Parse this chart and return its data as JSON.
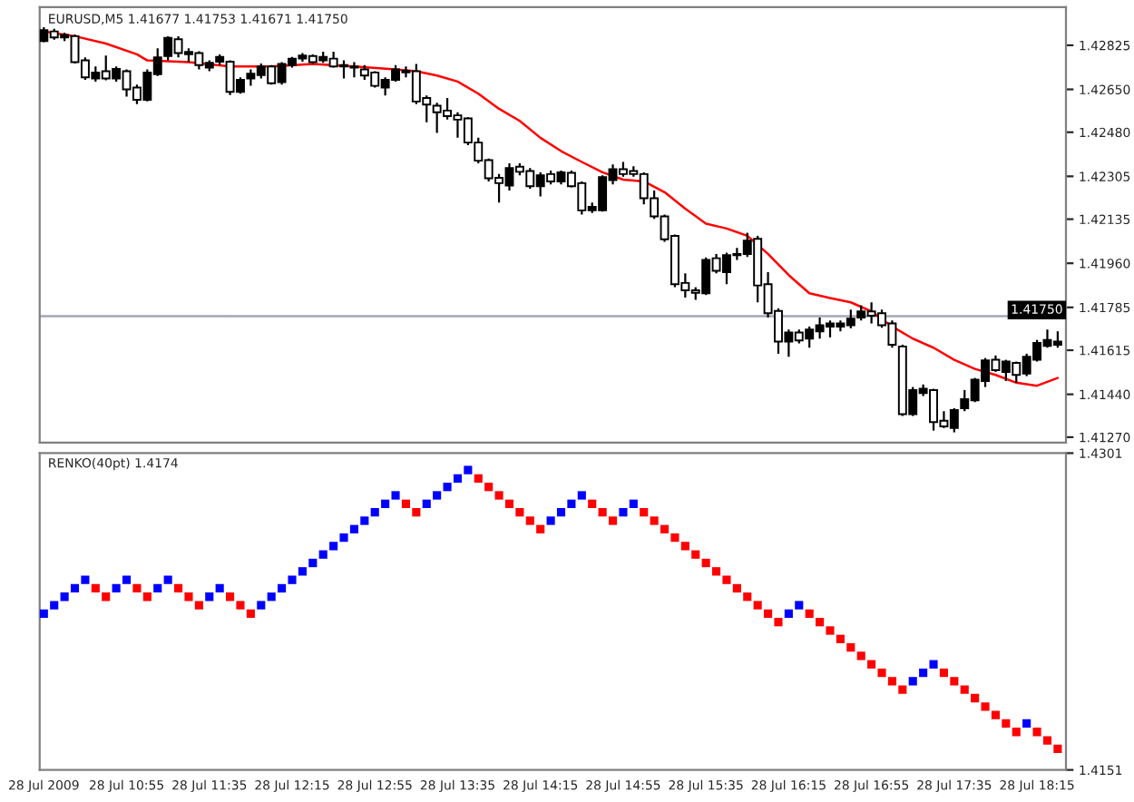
{
  "chart_data": [
    {
      "type": "candlestick",
      "title": "EURUSD,M5 1.41677 1.41753 1.41671 1.41750",
      "x": [
        "2009-07-28T10:15",
        "2009-07-28T10:20",
        "2009-07-28T10:25",
        "2009-07-28T10:30",
        "2009-07-28T10:35",
        "2009-07-28T10:40",
        "2009-07-28T10:45",
        "2009-07-28T10:50",
        "2009-07-28T10:55",
        "2009-07-28T11:00",
        "2009-07-28T11:05",
        "2009-07-28T11:10",
        "2009-07-28T11:15",
        "2009-07-28T11:20",
        "2009-07-28T11:25",
        "2009-07-28T11:30",
        "2009-07-28T11:35",
        "2009-07-28T11:40",
        "2009-07-28T11:45",
        "2009-07-28T11:50",
        "2009-07-28T11:55",
        "2009-07-28T12:00",
        "2009-07-28T12:05",
        "2009-07-28T12:10",
        "2009-07-28T12:15",
        "2009-07-28T12:20",
        "2009-07-28T12:25",
        "2009-07-28T12:30",
        "2009-07-28T12:35",
        "2009-07-28T12:40",
        "2009-07-28T12:45",
        "2009-07-28T12:50",
        "2009-07-28T12:55",
        "2009-07-28T13:00",
        "2009-07-28T13:05",
        "2009-07-28T13:10",
        "2009-07-28T13:15",
        "2009-07-28T13:20",
        "2009-07-28T13:25",
        "2009-07-28T13:30",
        "2009-07-28T13:35",
        "2009-07-28T13:40",
        "2009-07-28T13:45",
        "2009-07-28T13:50",
        "2009-07-28T13:55",
        "2009-07-28T14:00",
        "2009-07-28T14:05",
        "2009-07-28T14:10",
        "2009-07-28T14:15",
        "2009-07-28T14:20",
        "2009-07-28T14:25",
        "2009-07-28T14:30",
        "2009-07-28T14:35",
        "2009-07-28T14:40",
        "2009-07-28T14:45",
        "2009-07-28T14:50",
        "2009-07-28T14:55",
        "2009-07-28T15:00",
        "2009-07-28T15:05",
        "2009-07-28T15:10",
        "2009-07-28T15:15",
        "2009-07-28T15:20",
        "2009-07-28T15:25",
        "2009-07-28T15:30",
        "2009-07-28T15:35",
        "2009-07-28T15:40",
        "2009-07-28T15:45",
        "2009-07-28T15:50",
        "2009-07-28T15:55",
        "2009-07-28T16:00",
        "2009-07-28T16:05",
        "2009-07-28T16:10",
        "2009-07-28T16:15",
        "2009-07-28T16:20",
        "2009-07-28T16:25",
        "2009-07-28T16:30",
        "2009-07-28T16:35",
        "2009-07-28T16:40",
        "2009-07-28T16:45",
        "2009-07-28T16:50",
        "2009-07-28T16:55",
        "2009-07-28T17:00",
        "2009-07-28T17:05",
        "2009-07-28T17:10",
        "2009-07-28T17:15",
        "2009-07-28T17:20",
        "2009-07-28T17:25",
        "2009-07-28T17:30",
        "2009-07-28T17:35",
        "2009-07-28T17:40",
        "2009-07-28T17:45",
        "2009-07-28T17:50",
        "2009-07-28T17:55",
        "2009-07-28T18:00",
        "2009-07-28T18:05",
        "2009-07-28T18:10",
        "2009-07-28T18:15",
        "2009-07-28T18:20",
        "2009-07-28T18:25"
      ],
      "ohlc": [
        [
          1.42842,
          1.42897,
          1.42837,
          1.42885
        ],
        [
          1.4288,
          1.4289,
          1.42847,
          1.42856
        ],
        [
          1.42856,
          1.42875,
          1.42842,
          1.42866
        ],
        [
          1.42861,
          1.42868,
          1.42753,
          1.42758
        ],
        [
          1.42765,
          1.42777,
          1.42688,
          1.42698
        ],
        [
          1.42693,
          1.42741,
          1.42681,
          1.42717
        ],
        [
          1.42722,
          1.42784,
          1.42686,
          1.42693
        ],
        [
          1.42693,
          1.42741,
          1.42681,
          1.42731
        ],
        [
          1.42722,
          1.42729,
          1.42621,
          1.4265
        ],
        [
          1.42657,
          1.42669,
          1.42592,
          1.42609
        ],
        [
          1.42609,
          1.42729,
          1.42602,
          1.42717
        ],
        [
          1.4271,
          1.42813,
          1.42703,
          1.42777
        ],
        [
          1.42782,
          1.42861,
          1.42765,
          1.42854
        ],
        [
          1.42849,
          1.42861,
          1.42777,
          1.42794
        ],
        [
          1.42789,
          1.42813,
          1.42758,
          1.42799
        ],
        [
          1.42794,
          1.42801,
          1.42729,
          1.42746
        ],
        [
          1.42736,
          1.42765,
          1.42722,
          1.42755
        ],
        [
          1.4276,
          1.42789,
          1.42746,
          1.42779
        ],
        [
          1.4276,
          1.42765,
          1.42628,
          1.4264
        ],
        [
          1.4264,
          1.42698,
          1.42633,
          1.42688
        ],
        [
          1.42693,
          1.42729,
          1.42664,
          1.42712
        ],
        [
          1.42707,
          1.42753,
          1.42693,
          1.42741
        ],
        [
          1.42741,
          1.42746,
          1.42669,
          1.42674
        ],
        [
          1.42679,
          1.42758,
          1.42669,
          1.42751
        ],
        [
          1.42746,
          1.42779,
          1.42736,
          1.42772
        ],
        [
          1.42772,
          1.42794,
          1.4276,
          1.42784
        ],
        [
          1.42782,
          1.42789,
          1.42751,
          1.42758
        ],
        [
          1.42765,
          1.42799,
          1.42755,
          1.42779
        ],
        [
          1.42772,
          1.42799,
          1.42736,
          1.42741
        ],
        [
          1.42746,
          1.42765,
          1.42693,
          1.42741
        ],
        [
          1.42741,
          1.42758,
          1.42698,
          1.42736
        ],
        [
          1.42729,
          1.42746,
          1.42688,
          1.42705
        ],
        [
          1.42717,
          1.42722,
          1.42657,
          1.42664
        ],
        [
          1.42657,
          1.42698,
          1.42626,
          1.42688
        ],
        [
          1.42688,
          1.42746,
          1.42681,
          1.42729
        ],
        [
          1.42724,
          1.42741,
          1.42698,
          1.42717
        ],
        [
          1.42722,
          1.42751,
          1.42592,
          1.42602
        ],
        [
          1.42616,
          1.42626,
          1.4252,
          1.4259
        ],
        [
          1.42585,
          1.42597,
          1.42477,
          1.42559
        ],
        [
          1.42566,
          1.42616,
          1.4253,
          1.42544
        ],
        [
          1.42547,
          1.42559,
          1.42458,
          1.4253
        ],
        [
          1.42535,
          1.42539,
          1.42429,
          1.42439
        ],
        [
          1.42439,
          1.42458,
          1.42357,
          1.42367
        ],
        [
          1.42369,
          1.42376,
          1.42285,
          1.42297
        ],
        [
          1.42299,
          1.42314,
          1.42201,
          1.42278
        ],
        [
          1.42268,
          1.42357,
          1.42249,
          1.42338
        ],
        [
          1.42343,
          1.42357,
          1.42309,
          1.42323
        ],
        [
          1.42326,
          1.42338,
          1.42256,
          1.42266
        ],
        [
          1.42266,
          1.42321,
          1.42225,
          1.42309
        ],
        [
          1.42314,
          1.42328,
          1.42273,
          1.42285
        ],
        [
          1.42285,
          1.42328,
          1.42273,
          1.42321
        ],
        [
          1.42319,
          1.42328,
          1.42261,
          1.42266
        ],
        [
          1.42278,
          1.42285,
          1.42153,
          1.4217
        ],
        [
          1.4217,
          1.42201,
          1.4216,
          1.42184
        ],
        [
          1.4217,
          1.42309,
          1.42165,
          1.42302
        ],
        [
          1.4229,
          1.42352,
          1.42273,
          1.42333
        ],
        [
          1.42333,
          1.42362,
          1.42304,
          1.42314
        ],
        [
          1.42326,
          1.42345,
          1.42304,
          1.42314
        ],
        [
          1.42314,
          1.42321,
          1.42194,
          1.42218
        ],
        [
          1.42218,
          1.42249,
          1.42136,
          1.42146
        ],
        [
          1.42146,
          1.42153,
          1.42045,
          1.42055
        ],
        [
          1.42069,
          1.42074,
          1.41865,
          1.41877
        ],
        [
          1.41882,
          1.4192,
          1.41824,
          1.41853
        ],
        [
          1.41853,
          1.41865,
          1.41815,
          1.41843
        ],
        [
          1.41841,
          1.41983,
          1.41834,
          1.41973
        ],
        [
          1.4198,
          1.41997,
          1.4192,
          1.4193
        ],
        [
          1.41925,
          1.42002,
          1.41877,
          1.41992
        ],
        [
          1.41997,
          1.42021,
          1.41973,
          1.41992
        ],
        [
          1.41997,
          1.42081,
          1.41985,
          1.4205
        ],
        [
          1.42057,
          1.42069,
          1.41805,
          1.41872
        ],
        [
          1.41877,
          1.41925,
          1.41745,
          1.41762
        ],
        [
          1.41771,
          1.41781,
          1.41601,
          1.41649
        ],
        [
          1.41649,
          1.41697,
          1.41589,
          1.41685
        ],
        [
          1.41685,
          1.41697,
          1.41642,
          1.41654
        ],
        [
          1.41661,
          1.41709,
          1.41625,
          1.41697
        ],
        [
          1.4169,
          1.41745,
          1.41661,
          1.41714
        ],
        [
          1.41709,
          1.41733,
          1.41666,
          1.41721
        ],
        [
          1.41709,
          1.41733,
          1.4169,
          1.41721
        ],
        [
          1.41714,
          1.41776,
          1.41702,
          1.4174
        ],
        [
          1.41745,
          1.41793,
          1.41733,
          1.41769
        ],
        [
          1.41769,
          1.41805,
          1.41721,
          1.41752
        ],
        [
          1.41762,
          1.41776,
          1.41704,
          1.41714
        ],
        [
          1.41721,
          1.41733,
          1.41625,
          1.41637
        ],
        [
          1.4163,
          1.41637,
          1.41354,
          1.41361
        ],
        [
          1.41361,
          1.41469,
          1.41354,
          1.41457
        ],
        [
          1.41445,
          1.41479,
          1.41433,
          1.41462
        ],
        [
          1.41457,
          1.41462,
          1.41296,
          1.4133
        ],
        [
          1.41335,
          1.41373,
          1.41306,
          1.41313
        ],
        [
          1.41306,
          1.41385,
          1.41289,
          1.41378
        ],
        [
          1.41385,
          1.41457,
          1.41373,
          1.41421
        ],
        [
          1.41416,
          1.41505,
          1.41409,
          1.41498
        ],
        [
          1.41493,
          1.41584,
          1.41469,
          1.41575
        ],
        [
          1.41577,
          1.41594,
          1.41529,
          1.41536
        ],
        [
          1.41529,
          1.41577,
          1.41493,
          1.4157
        ],
        [
          1.41565,
          1.4157,
          1.41486,
          1.41517
        ],
        [
          1.41522,
          1.41601,
          1.41512,
          1.41589
        ],
        [
          1.41577,
          1.41656,
          1.4157,
          1.41644
        ],
        [
          1.41632,
          1.41697,
          1.41625,
          1.41656
        ],
        [
          1.41637,
          1.4169,
          1.41625,
          1.41649
        ]
      ],
      "series": [
        {
          "type": "line",
          "color": "#ff0000",
          "x": [
            "2009-07-28T10:15",
            "2009-07-28T10:30",
            "2009-07-28T10:45",
            "2009-07-28T11:00",
            "2009-07-28T11:05",
            "2009-07-28T11:25",
            "2009-07-28T11:45",
            "2009-07-28T12:05",
            "2009-07-28T12:25",
            "2009-07-28T12:45",
            "2009-07-28T13:05",
            "2009-07-28T13:15",
            "2009-07-28T13:25",
            "2009-07-28T13:35",
            "2009-07-28T13:45",
            "2009-07-28T13:55",
            "2009-07-28T14:05",
            "2009-07-28T14:15",
            "2009-07-28T14:25",
            "2009-07-28T14:35",
            "2009-07-28T14:45",
            "2009-07-28T14:55",
            "2009-07-28T15:05",
            "2009-07-28T15:15",
            "2009-07-28T15:25",
            "2009-07-28T15:35",
            "2009-07-28T15:45",
            "2009-07-28T15:55",
            "2009-07-28T16:05",
            "2009-07-28T16:15",
            "2009-07-28T16:25",
            "2009-07-28T16:35",
            "2009-07-28T16:45",
            "2009-07-28T16:55",
            "2009-07-28T17:05",
            "2009-07-28T17:15",
            "2009-07-28T17:25",
            "2009-07-28T17:35",
            "2009-07-28T17:45",
            "2009-07-28T17:55",
            "2009-07-28T18:05",
            "2009-07-28T18:15",
            "2009-07-28T18:25"
          ],
          "values": [
            1.4288,
            1.42861,
            1.42832,
            1.42789,
            1.42765,
            1.42758,
            1.42741,
            1.42741,
            1.42751,
            1.42741,
            1.42729,
            1.42722,
            1.42705,
            1.42681,
            1.42633,
            1.42573,
            1.42525,
            1.42458,
            1.42405,
            1.42362,
            1.42321,
            1.42292,
            1.42285,
            1.42242,
            1.42177,
            1.42117,
            1.42098,
            1.42069,
            1.41997,
            1.41913,
            1.41841,
            1.41822,
            1.41805,
            1.41769,
            1.41709,
            1.41661,
            1.41625,
            1.41577,
            1.41541,
            1.41517,
            1.41486,
            1.41474,
            1.41505
          ]
        }
      ],
      "xlim": [
        "2009-07-28T10:13",
        "2009-07-28T18:29"
      ],
      "ylim": [
        1.41248,
        1.42976
      ],
      "yticks": [
        {
          "value": 1.42825,
          "label": "1.42825"
        },
        {
          "value": 1.4265,
          "label": "1.42650"
        },
        {
          "value": 1.4248,
          "label": "1.42480"
        },
        {
          "value": 1.42305,
          "label": "1.42305"
        },
        {
          "value": 1.42135,
          "label": "1.42135"
        },
        {
          "value": 1.4196,
          "label": "1.41960"
        },
        {
          "value": 1.41785,
          "label": "1.41785"
        },
        {
          "value": 1.41615,
          "label": "1.41615"
        },
        {
          "value": 1.4144,
          "label": "1.41440"
        },
        {
          "value": 1.4127,
          "label": "1.41270"
        }
      ],
      "ref_lines": [
        {
          "axis": "y",
          "value": 1.4175,
          "label": "1.41750",
          "color": "#a4a8b4"
        }
      ],
      "tick_labels": "y"
    },
    {
      "type": "bar",
      "title": "RENKO(40pt) 1.4174",
      "x": [
        "2009-07-28T10:15",
        "2009-07-28T10:20",
        "2009-07-28T10:25",
        "2009-07-28T10:30",
        "2009-07-28T10:35",
        "2009-07-28T10:40",
        "2009-07-28T10:45",
        "2009-07-28T10:50",
        "2009-07-28T10:55",
        "2009-07-28T11:00",
        "2009-07-28T11:05",
        "2009-07-28T11:10",
        "2009-07-28T11:15",
        "2009-07-28T11:20",
        "2009-07-28T11:25",
        "2009-07-28T11:30",
        "2009-07-28T11:35",
        "2009-07-28T11:40",
        "2009-07-28T11:45",
        "2009-07-28T11:50",
        "2009-07-28T11:55",
        "2009-07-28T12:00",
        "2009-07-28T12:05",
        "2009-07-28T12:10",
        "2009-07-28T12:15",
        "2009-07-28T12:20",
        "2009-07-28T12:25",
        "2009-07-28T12:30",
        "2009-07-28T12:35",
        "2009-07-28T12:40",
        "2009-07-28T12:45",
        "2009-07-28T12:50",
        "2009-07-28T12:55",
        "2009-07-28T13:00",
        "2009-07-28T13:05",
        "2009-07-28T13:10",
        "2009-07-28T13:15",
        "2009-07-28T13:20",
        "2009-07-28T13:25",
        "2009-07-28T13:30",
        "2009-07-28T13:35",
        "2009-07-28T13:40",
        "2009-07-28T13:45",
        "2009-07-28T13:50",
        "2009-07-28T13:55",
        "2009-07-28T14:00",
        "2009-07-28T14:05",
        "2009-07-28T14:10",
        "2009-07-28T14:15",
        "2009-07-28T14:20",
        "2009-07-28T14:25",
        "2009-07-28T14:30",
        "2009-07-28T14:35",
        "2009-07-28T14:40",
        "2009-07-28T14:45",
        "2009-07-28T14:50",
        "2009-07-28T14:55",
        "2009-07-28T15:00",
        "2009-07-28T15:05",
        "2009-07-28T15:10",
        "2009-07-28T15:15",
        "2009-07-28T15:20",
        "2009-07-28T15:25",
        "2009-07-28T15:30",
        "2009-07-28T15:35",
        "2009-07-28T15:40",
        "2009-07-28T15:45",
        "2009-07-28T15:50",
        "2009-07-28T15:55",
        "2009-07-28T16:00",
        "2009-07-28T16:05",
        "2009-07-28T16:10",
        "2009-07-28T16:15",
        "2009-07-28T16:20",
        "2009-07-28T16:25",
        "2009-07-28T16:30",
        "2009-07-28T16:35",
        "2009-07-28T16:40",
        "2009-07-28T16:45",
        "2009-07-28T16:50",
        "2009-07-28T16:55",
        "2009-07-28T17:00",
        "2009-07-28T17:05",
        "2009-07-28T17:10",
        "2009-07-28T17:15",
        "2009-07-28T17:20",
        "2009-07-28T17:25",
        "2009-07-28T17:30",
        "2009-07-28T17:35",
        "2009-07-28T17:40",
        "2009-07-28T17:45",
        "2009-07-28T17:50",
        "2009-07-28T17:55",
        "2009-07-28T18:00",
        "2009-07-28T18:05",
        "2009-07-28T18:10",
        "2009-07-28T18:15",
        "2009-07-28T18:20",
        "2009-07-28T18:25"
      ],
      "base": [
        1.4223,
        1.4227,
        1.4231,
        1.4235,
        1.4239,
        1.4235,
        1.4231,
        1.4235,
        1.4239,
        1.4235,
        1.4231,
        1.4235,
        1.4239,
        1.4235,
        1.4231,
        1.4227,
        1.4231,
        1.4235,
        1.4231,
        1.4227,
        1.4223,
        1.4227,
        1.4231,
        1.4235,
        1.4239,
        1.4243,
        1.4247,
        1.4251,
        1.4255,
        1.4259,
        1.4263,
        1.4267,
        1.4271,
        1.4275,
        1.4279,
        1.4275,
        1.4271,
        1.4275,
        1.4279,
        1.4283,
        1.4287,
        1.4291,
        1.4287,
        1.4283,
        1.4279,
        1.4275,
        1.4271,
        1.4267,
        1.4263,
        1.4267,
        1.4271,
        1.4275,
        1.4279,
        1.4275,
        1.4271,
        1.4267,
        1.4271,
        1.4275,
        1.4271,
        1.4267,
        1.4263,
        1.4259,
        1.4255,
        1.4251,
        1.4247,
        1.4243,
        1.4239,
        1.4235,
        1.4231,
        1.4227,
        1.4223,
        1.4219,
        1.4223,
        1.4227,
        1.4223,
        1.4219,
        1.4215,
        1.4211,
        1.4207,
        1.4203,
        1.4199,
        1.4195,
        1.4191,
        1.4187,
        1.4191,
        1.4195,
        1.4199,
        1.4195,
        1.4191,
        1.4187,
        1.4183,
        1.4179,
        1.4175,
        1.4171,
        1.4167,
        1.4171,
        1.4167,
        1.4163,
        1.4159
      ],
      "values": [
        0.0004,
        0.0004,
        0.0004,
        0.0004,
        0.0004,
        0.0004,
        0.0004,
        0.0004,
        0.0004,
        0.0004,
        0.0004,
        0.0004,
        0.0004,
        0.0004,
        0.0004,
        0.0004,
        0.0004,
        0.0004,
        0.0004,
        0.0004,
        0.0004,
        0.0004,
        0.0004,
        0.0004,
        0.0004,
        0.0004,
        0.0004,
        0.0004,
        0.0004,
        0.0004,
        0.0004,
        0.0004,
        0.0004,
        0.0004,
        0.0004,
        0.0004,
        0.0004,
        0.0004,
        0.0004,
        0.0004,
        0.0004,
        0.0004,
        0.0004,
        0.0004,
        0.0004,
        0.0004,
        0.0004,
        0.0004,
        0.0004,
        0.0004,
        0.0004,
        0.0004,
        0.0004,
        0.0004,
        0.0004,
        0.0004,
        0.0004,
        0.0004,
        0.0004,
        0.0004,
        0.0004,
        0.0004,
        0.0004,
        0.0004,
        0.0004,
        0.0004,
        0.0004,
        0.0004,
        0.0004,
        0.0004,
        0.0004,
        0.0004,
        0.0004,
        0.0004,
        0.0004,
        0.0004,
        0.0004,
        0.0004,
        0.0004,
        0.0004,
        0.0004,
        0.0004,
        0.0004,
        0.0004,
        0.0004,
        0.0004,
        0.0004,
        0.0004,
        0.0004,
        0.0004,
        0.0004,
        0.0004,
        0.0004,
        0.0004,
        0.0004,
        0.0004,
        0.0004,
        0.0004,
        0.0004
      ],
      "colors": [
        "#0000ff",
        "#0000ff",
        "#0000ff",
        "#0000ff",
        "#0000ff",
        "#ff0000",
        "#ff0000",
        "#0000ff",
        "#0000ff",
        "#ff0000",
        "#ff0000",
        "#0000ff",
        "#0000ff",
        "#ff0000",
        "#ff0000",
        "#ff0000",
        "#0000ff",
        "#0000ff",
        "#ff0000",
        "#ff0000",
        "#ff0000",
        "#0000ff",
        "#0000ff",
        "#0000ff",
        "#0000ff",
        "#0000ff",
        "#0000ff",
        "#0000ff",
        "#0000ff",
        "#0000ff",
        "#0000ff",
        "#0000ff",
        "#0000ff",
        "#0000ff",
        "#0000ff",
        "#ff0000",
        "#ff0000",
        "#0000ff",
        "#0000ff",
        "#0000ff",
        "#0000ff",
        "#0000ff",
        "#ff0000",
        "#ff0000",
        "#ff0000",
        "#ff0000",
        "#ff0000",
        "#ff0000",
        "#ff0000",
        "#0000ff",
        "#0000ff",
        "#0000ff",
        "#0000ff",
        "#ff0000",
        "#ff0000",
        "#ff0000",
        "#0000ff",
        "#0000ff",
        "#ff0000",
        "#ff0000",
        "#ff0000",
        "#ff0000",
        "#ff0000",
        "#ff0000",
        "#ff0000",
        "#ff0000",
        "#ff0000",
        "#ff0000",
        "#ff0000",
        "#ff0000",
        "#ff0000",
        "#ff0000",
        "#0000ff",
        "#0000ff",
        "#ff0000",
        "#ff0000",
        "#ff0000",
        "#ff0000",
        "#ff0000",
        "#ff0000",
        "#ff0000",
        "#ff0000",
        "#ff0000",
        "#ff0000",
        "#0000ff",
        "#0000ff",
        "#0000ff",
        "#ff0000",
        "#ff0000",
        "#ff0000",
        "#ff0000",
        "#ff0000",
        "#ff0000",
        "#ff0000",
        "#ff0000",
        "#0000ff",
        "#ff0000",
        "#ff0000",
        "#ff0000"
      ],
      "xlim": [
        "2009-07-28T10:13",
        "2009-07-28T18:29"
      ],
      "xticks": [
        {
          "value": "2009-07-28T10:15",
          "label": "28 Jul 2009"
        },
        {
          "value": "2009-07-28T10:55",
          "label": "28 Jul 10:55"
        },
        {
          "value": "2009-07-28T11:35",
          "label": "28 Jul 11:35"
        },
        {
          "value": "2009-07-28T12:15",
          "label": "28 Jul 12:15"
        },
        {
          "value": "2009-07-28T12:55",
          "label": "28 Jul 12:55"
        },
        {
          "value": "2009-07-28T13:35",
          "label": "28 Jul 13:35"
        },
        {
          "value": "2009-07-28T14:15",
          "label": "28 Jul 14:15"
        },
        {
          "value": "2009-07-28T14:55",
          "label": "28 Jul 14:55"
        },
        {
          "value": "2009-07-28T15:35",
          "label": "28 Jul 15:35"
        },
        {
          "value": "2009-07-28T16:15",
          "label": "28 Jul 16:15"
        },
        {
          "value": "2009-07-28T16:55",
          "label": "28 Jul 16:55"
        },
        {
          "value": "2009-07-28T17:35",
          "label": "28 Jul 17:35"
        },
        {
          "value": "2009-07-28T18:15",
          "label": "28 Jul 18:15"
        }
      ],
      "ylim": [
        1.4151,
        1.4301
      ],
      "yticks": [
        1.4301,
        1.4151
      ]
    }
  ]
}
